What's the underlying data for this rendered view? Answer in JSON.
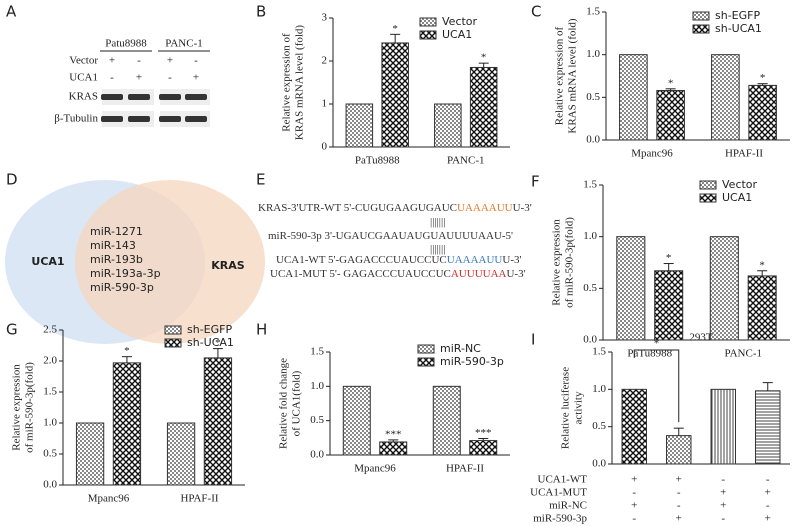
{
  "blot": {
    "panel": "A",
    "cell_lines": [
      "Patu8988",
      "PANC-1"
    ],
    "conditions": [
      {
        "label": "Vector",
        "cells": [
          "+",
          "-",
          "+",
          "-"
        ]
      },
      {
        "label": "UCA1",
        "cells": [
          "-",
          "+",
          "-",
          "+"
        ]
      }
    ],
    "bands": [
      "KRAS",
      "β-Tubulin"
    ]
  },
  "venn": {
    "panel": "D",
    "left": "UCA1",
    "right": "KRAS",
    "overlap": [
      "miR-1271",
      "miR-143",
      "miR-193b",
      "miR-193a-3p",
      "miR-590-3p"
    ]
  },
  "alignment": {
    "panel": "E",
    "lines": [
      {
        "segments": [
          {
            "text": "KRAS-3'UTR-WT 5'-CUGUGAAGUGAUC",
            "color": "#333333"
          },
          {
            "text": "UAAAAUU",
            "color": "#e07b2a"
          },
          {
            "text": "U-3'",
            "color": "#333333"
          }
        ]
      },
      {
        "segments": [
          {
            "text": "|||||||",
            "color": "#333333"
          }
        ]
      },
      {
        "segments": [
          {
            "text": "miR-590-3p  3'-UGAUCGAAUAUGUAUUUUAAU-5'",
            "color": "#333333"
          }
        ]
      },
      {
        "segments": [
          {
            "text": "|||||||",
            "color": "#333333"
          }
        ]
      },
      {
        "segments": [
          {
            "text": "UCA1-WT 5'-GAGACCCUAUCCUC",
            "color": "#333333"
          },
          {
            "text": "UAAAAUU",
            "color": "#3a78c2"
          },
          {
            "text": "U-3'",
            "color": "#333333"
          }
        ]
      },
      {
        "segments": [
          {
            "text": "UCA1-MUT  5'- GAGACCCUAUCCUC",
            "color": "#333333"
          },
          {
            "text": "AUUUUAA",
            "color": "#d62a2a"
          },
          {
            "text": "U-3'",
            "color": "#333333"
          }
        ]
      }
    ]
  },
  "chart_data": [
    {
      "type": "bar",
      "panel": "B",
      "ylabel": [
        "Relative expression of",
        "KRAS mRNA level (fold)"
      ],
      "categories": [
        "PaTu8988",
        "PANC-1"
      ],
      "series": [
        {
          "name": "Vector",
          "color": "#333333",
          "values": [
            1,
            1
          ]
        },
        {
          "name": "UCA1",
          "color": "#333333",
          "values": [
            2.42,
            1.85
          ],
          "errors": [
            0.2,
            0.1
          ],
          "significance": [
            "*",
            "*"
          ]
        }
      ],
      "ylim": [
        0,
        3
      ],
      "yticks": [
        0,
        1,
        2,
        3
      ]
    },
    {
      "type": "bar",
      "panel": "C",
      "ylabel": [
        "Relative expression of",
        "KRAS mRNA level (fold)"
      ],
      "categories": [
        "Mpanc96",
        "HPAF-II"
      ],
      "series": [
        {
          "name": "sh-EGFP",
          "color": "#333333",
          "values": [
            1,
            1
          ]
        },
        {
          "name": "sh-UCA1",
          "color": "#333333",
          "values": [
            0.58,
            0.64
          ],
          "errors": [
            0.02,
            0.02
          ],
          "significance": [
            "*",
            "*"
          ]
        }
      ],
      "ylim": [
        0,
        1.5
      ],
      "yticks": [
        {
          "value": 0,
          "label": "0.0"
        },
        0.5,
        {
          "value": 1,
          "label": "1.0"
        },
        1.5
      ]
    },
    {
      "type": "bar",
      "panel": "F",
      "ylabel": [
        "Relative expression",
        "of miR-590-3p(fold)"
      ],
      "categories": [
        "PaTu8988",
        "PANC-1"
      ],
      "series": [
        {
          "name": "Vector",
          "color": "#333333",
          "values": [
            1,
            1
          ]
        },
        {
          "name": "UCA1",
          "color": "#333333",
          "values": [
            0.67,
            0.62
          ],
          "errors": [
            0.07,
            0.05
          ],
          "significance": [
            "*",
            "*"
          ]
        }
      ],
      "ylim": [
        0,
        1.5
      ],
      "yticks": [
        {
          "value": 0,
          "label": "0.0"
        },
        0.5,
        {
          "value": 1,
          "label": "1.0"
        },
        1.5
      ]
    },
    {
      "type": "bar",
      "panel": "G",
      "ylabel": [
        "Relative expression",
        "of miR-590-3p(fold)"
      ],
      "categories": [
        "Mpanc96",
        "HPAF-II"
      ],
      "series": [
        {
          "name": "sh-EGFP",
          "color": "#333333",
          "values": [
            1,
            1
          ]
        },
        {
          "name": "sh-UCA1",
          "color": "#333333",
          "values": [
            1.97,
            2.05
          ],
          "errors": [
            0.1,
            0.15
          ],
          "significance": [
            "*",
            "*"
          ]
        }
      ],
      "ylim": [
        0,
        2.5
      ],
      "yticks": [
        {
          "value": 0,
          "label": "0.0"
        },
        0.5,
        {
          "value": 1,
          "label": "1.0"
        },
        1.5,
        {
          "value": 2,
          "label": "2.0"
        },
        2.5
      ]
    },
    {
      "type": "bar",
      "panel": "H",
      "ylabel": [
        "Relative fold change",
        "of UCA1(fold)"
      ],
      "categories": [
        "Mpanc96",
        "HPAF-II"
      ],
      "series": [
        {
          "name": "miR-NC",
          "color": "#333333",
          "values": [
            1,
            1
          ]
        },
        {
          "name": "miR-590-3p",
          "color": "#333333",
          "values": [
            0.19,
            0.21
          ],
          "errors": [
            0.03,
            0.03
          ],
          "significance": [
            "***",
            "***"
          ]
        }
      ],
      "ylim": [
        0,
        1.5
      ],
      "yticks": [
        {
          "value": 0,
          "label": "0.0"
        },
        0.5,
        {
          "value": 1,
          "label": "1.0"
        },
        1.5
      ]
    },
    {
      "type": "bar",
      "panel": "I",
      "title": "293T",
      "ylabel": [
        "Relative luciferase",
        "activity"
      ],
      "color": "#333333",
      "values": [
        1,
        0.38,
        1,
        0.98
      ],
      "errors": [
        null,
        0.1,
        null,
        0.11
      ],
      "bracket_label": "*",
      "conditions": [
        {
          "label": "UCA1-WT",
          "cells": [
            "+",
            "+",
            "-",
            "-"
          ]
        },
        {
          "label": "UCA1-MUT",
          "cells": [
            "-",
            "-",
            "+",
            "+"
          ]
        },
        {
          "label": "miR-NC",
          "cells": [
            "+",
            "-",
            "+",
            "-"
          ]
        },
        {
          "label": "miR-590-3p",
          "cells": [
            "-",
            "+",
            "-",
            "+"
          ]
        }
      ],
      "ylim": [
        0,
        1.5
      ],
      "yticks": [
        {
          "value": 0,
          "label": "0.0"
        },
        0.5,
        {
          "value": 1,
          "label": "1.0"
        },
        1.5
      ]
    }
  ]
}
